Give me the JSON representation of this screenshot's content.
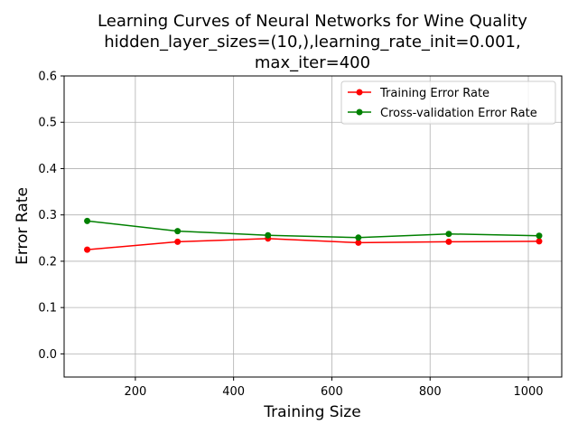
{
  "chart_data": {
    "type": "line",
    "title_lines": [
      "Learning Curves of Neural Networks for Wine Quality",
      "hidden_layer_sizes=(10,),learning_rate_init=0.001,",
      "max_iter=400"
    ],
    "xlabel": "Training Size",
    "ylabel": "Error Rate",
    "xlim": [
      55,
      1068
    ],
    "ylim": [
      -0.05,
      0.6
    ],
    "xticks": [
      200,
      400,
      600,
      800,
      1000
    ],
    "xtick_labels": [
      "200",
      "400",
      "600",
      "800",
      "1000"
    ],
    "yticks": [
      0.0,
      0.1,
      0.2,
      0.3,
      0.4,
      0.5,
      0.6
    ],
    "ytick_labels": [
      "0.0",
      "0.1",
      "0.2",
      "0.3",
      "0.4",
      "0.5",
      "0.6"
    ],
    "grid": true,
    "legend_position": "top-right",
    "x": [
      102,
      286,
      470,
      654,
      838,
      1022
    ],
    "series": [
      {
        "name": "Training Error Rate",
        "color": "#ff0000",
        "values": [
          0.225,
          0.242,
          0.249,
          0.24,
          0.242,
          0.243
        ]
      },
      {
        "name": "Cross-validation Error Rate",
        "color": "#008000",
        "values": [
          0.287,
          0.265,
          0.256,
          0.251,
          0.259,
          0.255
        ]
      }
    ]
  }
}
